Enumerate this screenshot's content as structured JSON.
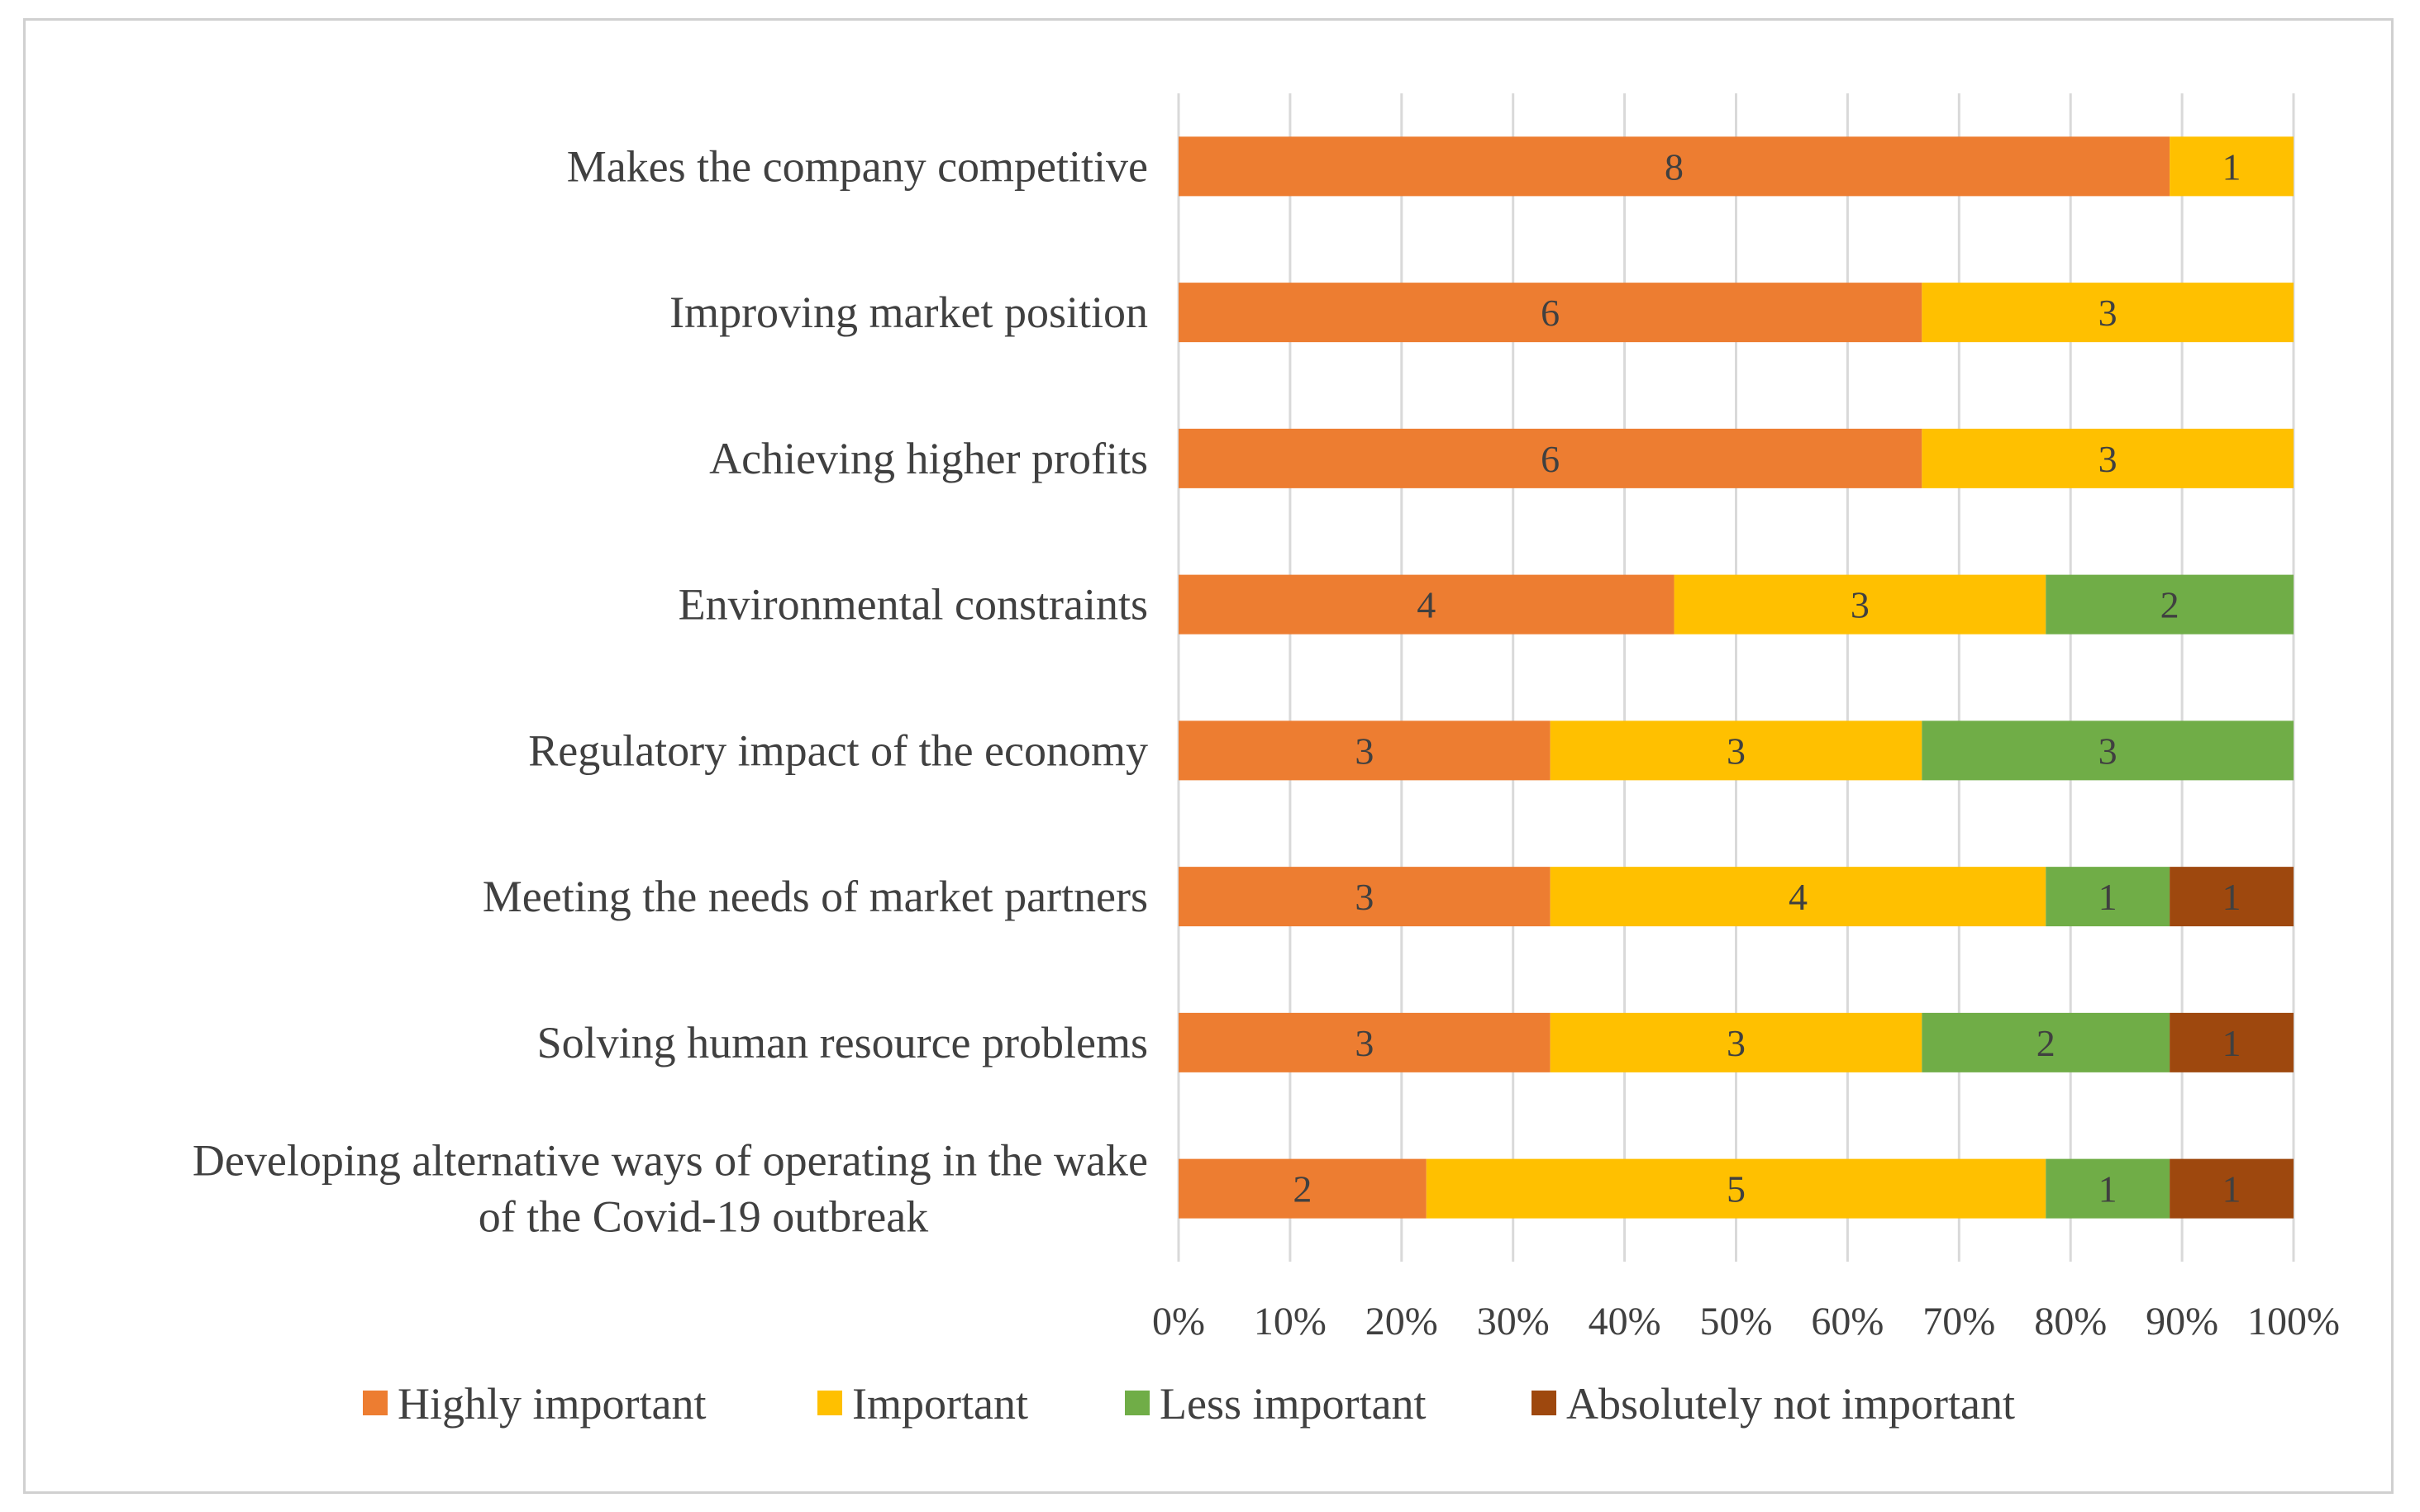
{
  "chart_data": {
    "type": "bar",
    "orientation": "horizontal",
    "stacked": "percent",
    "title": "",
    "xlabel": "",
    "ylabel": "",
    "xlim": [
      0,
      100
    ],
    "xticks": [
      "0%",
      "10%",
      "20%",
      "30%",
      "40%",
      "50%",
      "60%",
      "70%",
      "80%",
      "90%",
      "100%"
    ],
    "grid": true,
    "legend_position": "bottom",
    "categories": [
      [
        "Makes the company competitive"
      ],
      [
        "Improving market position"
      ],
      [
        "Achieving higher profits"
      ],
      [
        "Environmental constraints"
      ],
      [
        "Regulatory impact of the economy"
      ],
      [
        "Meeting the needs of market partners"
      ],
      [
        "Solving human resource problems"
      ],
      [
        "Developing alternative ways of operating in the wake",
        "of the Covid-19 outbreak"
      ]
    ],
    "series": [
      {
        "name": "Highly important",
        "color": "#ED7D31",
        "values": [
          8,
          6,
          6,
          4,
          3,
          3,
          3,
          2
        ]
      },
      {
        "name": "Important",
        "color": "#FFC000",
        "values": [
          1,
          3,
          3,
          3,
          3,
          4,
          3,
          5
        ]
      },
      {
        "name": "Less important",
        "color": "#70AD47",
        "values": [
          0,
          0,
          0,
          2,
          3,
          1,
          2,
          1
        ]
      },
      {
        "name": "Absolutely not important",
        "color": "#9E480E",
        "values": [
          0,
          0,
          0,
          0,
          0,
          1,
          1,
          1
        ]
      }
    ]
  }
}
